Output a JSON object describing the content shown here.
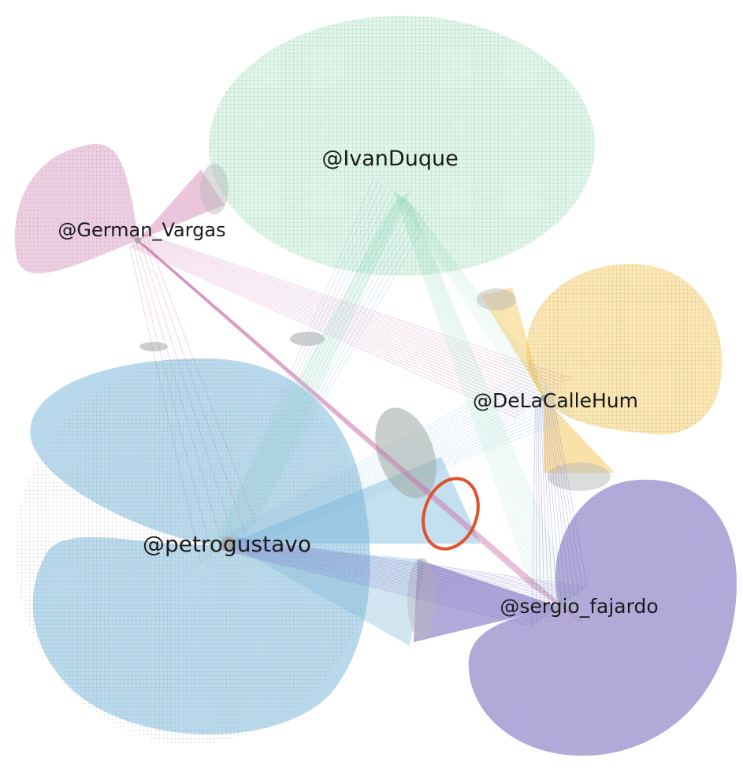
{
  "nodes": {
    "ivanduque": {
      "label": "@IvanDuque",
      "color": "#8fd9b4"
    },
    "german_vargas": {
      "label": "@German_Vargas",
      "color": "#cc6fa8"
    },
    "delacallehum": {
      "label": "@DeLaCalleHum",
      "color": "#f2be3d"
    },
    "petrogustavo": {
      "label": "@petrogustavo",
      "color": "#7db8db"
    },
    "sergio_fajardo": {
      "label": "@sergio_fajardo",
      "color": "#7562bc"
    }
  },
  "highlight_color": "#e0522a"
}
